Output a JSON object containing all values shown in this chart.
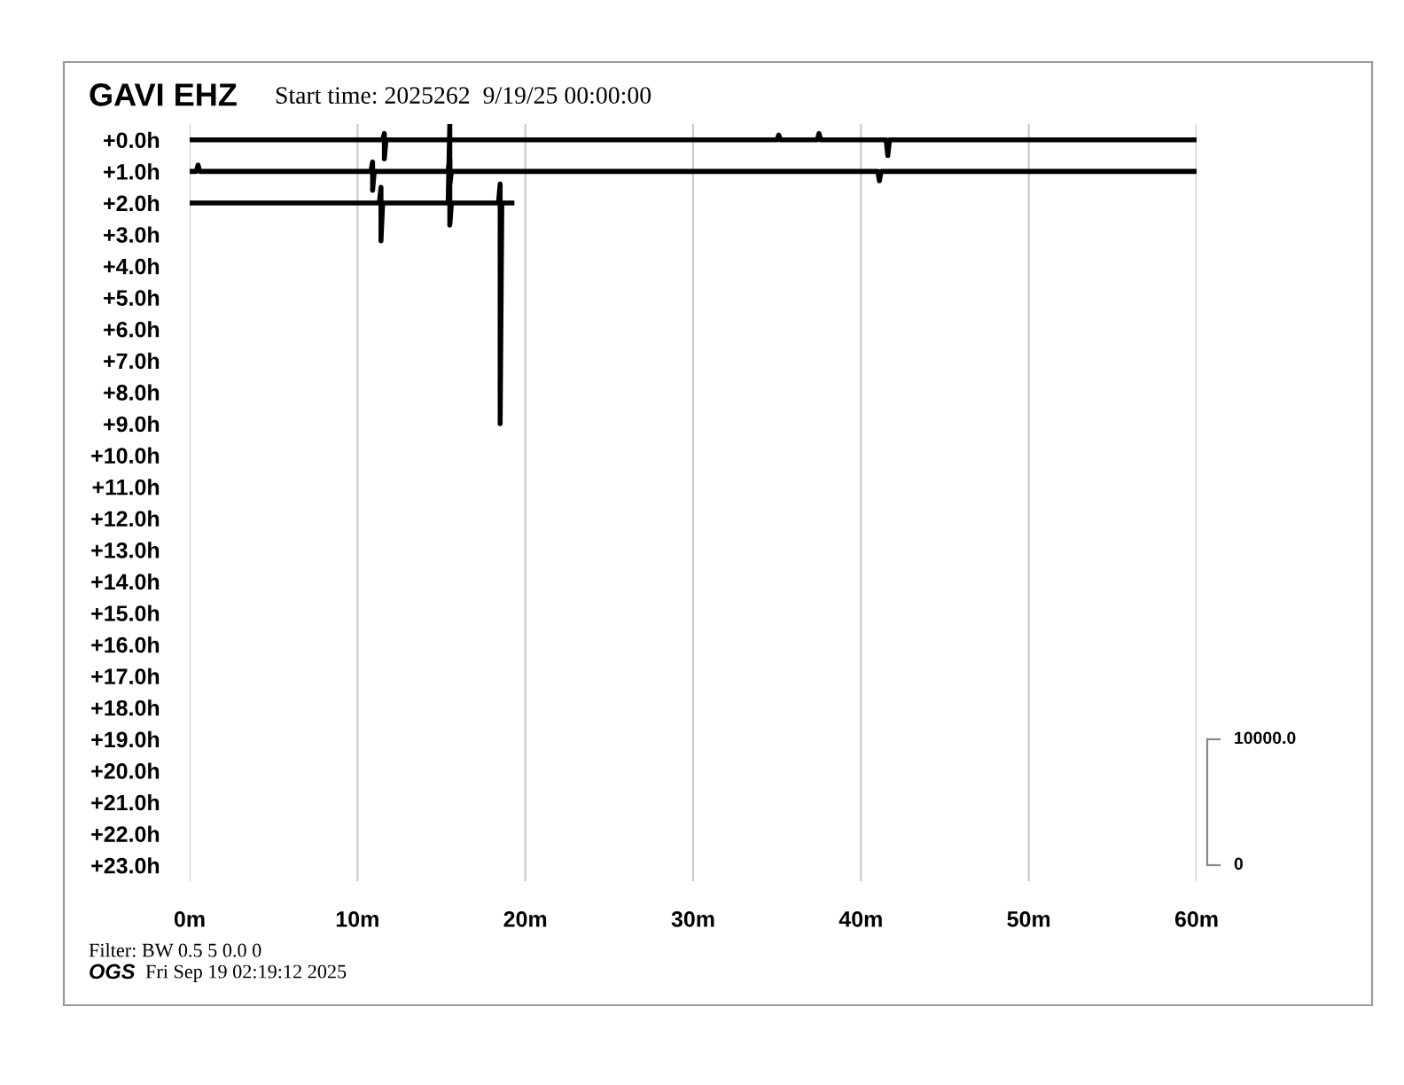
{
  "chart_data": {
    "type": "line",
    "title": "GAVI EHZ",
    "subtitle": "Start time: 2025262  9/19/25 00:00:00",
    "annotations": [
      "Filter: BW 0.5 5 0.0 0",
      "OGS",
      "Fri Sep 19 02:19:12 2025",
      "10000.0",
      "0"
    ],
    "series": [
      {
        "color": "#000000",
        "x": [
          0,
          11.5,
          11.6,
          11.6,
          11.7,
          35,
          35.1,
          35.2,
          37.4,
          37.5,
          37.6,
          41.5,
          41.6,
          41.7,
          60
        ],
        "values": [
          0,
          0,
          -0.2,
          0.6,
          0,
          0,
          -0.15,
          0,
          0,
          -0.2,
          0,
          0,
          0.5,
          0,
          0
        ]
      },
      {
        "color": "#000000",
        "x": [
          0,
          0.4,
          0.5,
          0.6,
          10.8,
          10.9,
          10.9,
          11.0,
          15.4,
          15.5,
          15.5,
          15.6,
          41.0,
          41.1,
          41.2,
          60
        ],
        "values": [
          1,
          1,
          0.8,
          1,
          1,
          0.7,
          1.6,
          1,
          1,
          0.6,
          1.4,
          1,
          1,
          1.3,
          1,
          1
        ]
      },
      {
        "color": "#000000",
        "x": [
          0,
          11.3,
          11.4,
          11.4,
          11.5,
          15.4,
          15.5,
          15.5,
          15.6,
          18.4,
          18.5,
          18.5,
          18.6,
          19.2
        ],
        "values": [
          2,
          2,
          1.5,
          3.2,
          2,
          2,
          -0.5,
          2.7,
          2,
          2,
          1.4,
          9.0,
          2,
          2
        ]
      }
    ],
    "xlim": [
      0,
      60
    ],
    "ylim": [
      23.5,
      -0.5
    ],
    "xticks": [
      {
        "value": 0,
        "label": "0m"
      },
      {
        "value": 10,
        "label": "10m"
      },
      {
        "value": 20,
        "label": "20m"
      },
      {
        "value": 30,
        "label": "30m"
      },
      {
        "value": 40,
        "label": "40m"
      },
      {
        "value": 50,
        "label": "50m"
      },
      {
        "value": 60,
        "label": "60m"
      }
    ],
    "yticks": [
      {
        "value": 0,
        "label": "+0.0h"
      },
      {
        "value": 1,
        "label": "+1.0h"
      },
      {
        "value": 2,
        "label": "+2.0h"
      },
      {
        "value": 3,
        "label": "+3.0h"
      },
      {
        "value": 4,
        "label": "+4.0h"
      },
      {
        "value": 5,
        "label": "+5.0h"
      },
      {
        "value": 6,
        "label": "+6.0h"
      },
      {
        "value": 7,
        "label": "+7.0h"
      },
      {
        "value": 8,
        "label": "+8.0h"
      },
      {
        "value": 9,
        "label": "+9.0h"
      },
      {
        "value": 10,
        "label": "+10.0h"
      },
      {
        "value": 11,
        "label": "+11.0h"
      },
      {
        "value": 12,
        "label": "+12.0h"
      },
      {
        "value": 13,
        "label": "+13.0h"
      },
      {
        "value": 14,
        "label": "+14.0h"
      },
      {
        "value": 15,
        "label": "+15.0h"
      },
      {
        "value": 16,
        "label": "+16.0h"
      },
      {
        "value": 17,
        "label": "+17.0h"
      },
      {
        "value": 18,
        "label": "+18.0h"
      },
      {
        "value": 19,
        "label": "+19.0h"
      },
      {
        "value": 20,
        "label": "+20.0h"
      },
      {
        "value": 21,
        "label": "+21.0h"
      },
      {
        "value": 22,
        "label": "+22.0h"
      },
      {
        "value": 23,
        "label": "+23.0h"
      }
    ],
    "grid": "x",
    "marker": "none",
    "line_style": "solid"
  }
}
